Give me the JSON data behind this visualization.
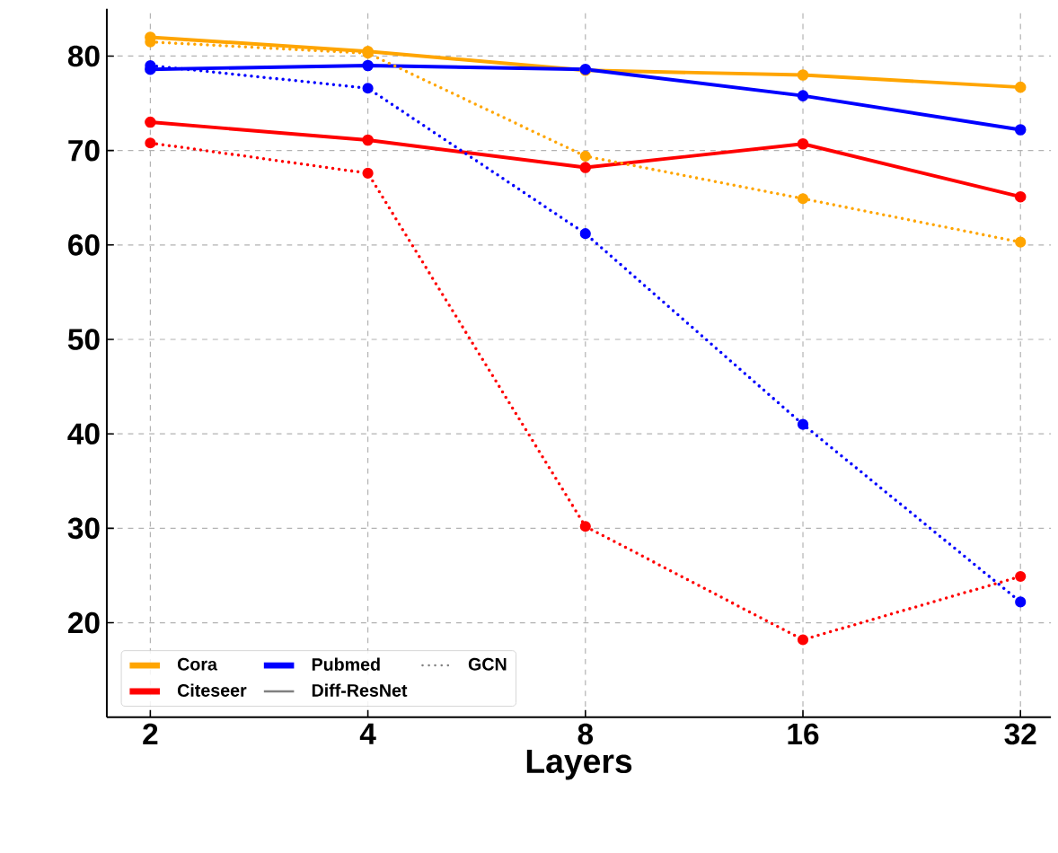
{
  "chart_data": {
    "type": "line",
    "xlabel": "Layers",
    "categories": [
      "2",
      "4",
      "8",
      "16",
      "32"
    ],
    "series": [
      {
        "name": "Cora",
        "color": "#ffa500",
        "line_style": "solid",
        "values": [
          82.0,
          80.5,
          78.5,
          78.0,
          76.7
        ]
      },
      {
        "name": "Citeseer",
        "color": "#ff0000",
        "line_style": "solid",
        "values": [
          73.0,
          71.1,
          68.2,
          70.7,
          65.1
        ]
      },
      {
        "name": "Pubmed",
        "color": "#0000ff",
        "line_style": "solid",
        "values": [
          78.6,
          79.0,
          78.6,
          75.8,
          72.2
        ]
      },
      {
        "color": "#ffa500",
        "line_style": "dotted",
        "values": [
          81.5,
          80.3,
          69.4,
          64.9,
          60.3
        ]
      },
      {
        "color": "#ff0000",
        "line_style": "dotted",
        "values": [
          70.8,
          67.6,
          30.2,
          18.2,
          24.9
        ]
      },
      {
        "color": "#0000ff",
        "line_style": "dotted",
        "values": [
          79.0,
          76.6,
          61.2,
          41.0,
          22.2
        ]
      }
    ],
    "annotations": [
      "Diff-ResNet",
      "GCN"
    ],
    "ylim": [
      10,
      85
    ],
    "yticks": [
      20,
      30,
      40,
      50,
      60,
      70,
      80
    ],
    "grid": true,
    "legend": "bottom left",
    "marker": "circle"
  }
}
